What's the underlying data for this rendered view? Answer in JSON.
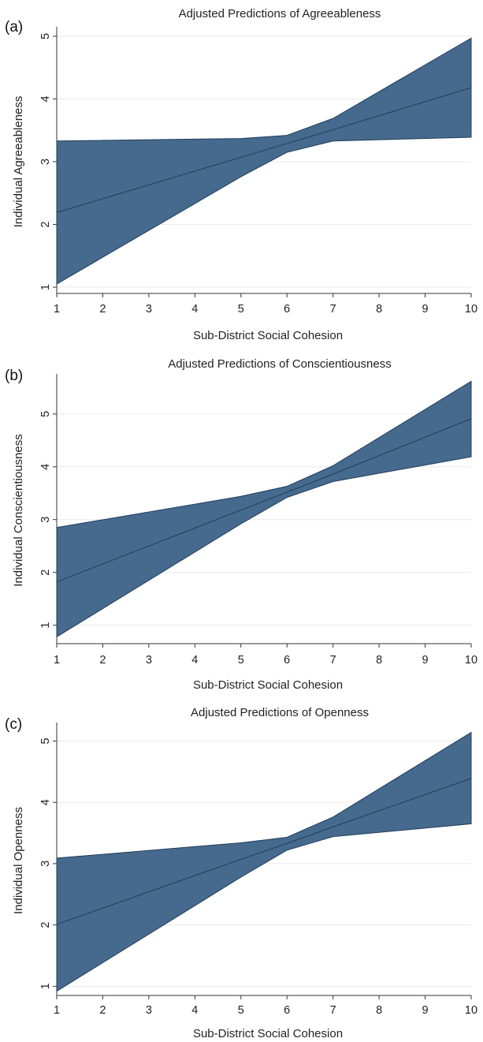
{
  "chart_data": [
    {
      "type": "area",
      "panel_label": "(a)",
      "title": "Adjusted Predictions of Agreeableness",
      "xlabel": "Sub-District Social Cohesion",
      "ylabel": "Individual Agreeableness",
      "xlim": [
        1,
        10
      ],
      "ylim": [
        0.9,
        5.1
      ],
      "x_ticks": [
        1,
        2,
        3,
        4,
        5,
        6,
        7,
        8,
        9,
        10
      ],
      "y_ticks": [
        1,
        2,
        3,
        4,
        5
      ],
      "grid": true,
      "x": [
        1,
        5,
        6,
        7,
        10
      ],
      "series": [
        {
          "role": "upper",
          "values": [
            3.33,
            3.37,
            3.42,
            3.69,
            4.97
          ]
        },
        {
          "role": "prediction",
          "values": [
            2.19,
            3.07,
            3.29,
            3.51,
            4.18
          ]
        },
        {
          "role": "lower",
          "values": [
            1.05,
            2.76,
            3.15,
            3.33,
            3.39
          ]
        }
      ]
    },
    {
      "type": "area",
      "panel_label": "(b)",
      "title": "Adjusted Predictions of Conscientiousness",
      "xlabel": "Sub-District Social Cohesion",
      "ylabel": "Individual Conscientiousness",
      "xlim": [
        1,
        10
      ],
      "ylim": [
        0.65,
        5.7
      ],
      "x_ticks": [
        1,
        2,
        3,
        4,
        5,
        6,
        7,
        8,
        9,
        10
      ],
      "y_ticks": [
        1,
        2,
        3,
        4,
        5
      ],
      "grid": true,
      "x": [
        1,
        5,
        6,
        7,
        10
      ],
      "series": [
        {
          "role": "upper",
          "values": [
            2.85,
            3.44,
            3.63,
            4.02,
            5.62
          ]
        },
        {
          "role": "prediction",
          "values": [
            1.82,
            3.18,
            3.52,
            3.86,
            4.91
          ]
        },
        {
          "role": "lower",
          "values": [
            0.78,
            2.92,
            3.42,
            3.72,
            4.19
          ]
        }
      ]
    },
    {
      "type": "area",
      "panel_label": "(c)",
      "title": "Adjusted Predictions of Openness",
      "xlabel": "Sub-District Social Cohesion",
      "ylabel": "Individual Openness",
      "xlim": [
        1,
        10
      ],
      "ylim": [
        0.85,
        5.25
      ],
      "x_ticks": [
        1,
        2,
        3,
        4,
        5,
        6,
        7,
        8,
        9,
        10
      ],
      "y_ticks": [
        1,
        2,
        3,
        4,
        5
      ],
      "grid": true,
      "x": [
        1,
        5,
        6,
        7,
        10
      ],
      "series": [
        {
          "role": "upper",
          "values": [
            3.09,
            3.34,
            3.43,
            3.76,
            5.14
          ]
        },
        {
          "role": "prediction",
          "values": [
            2.01,
            3.07,
            3.33,
            3.6,
            4.39
          ]
        },
        {
          "role": "lower",
          "values": [
            0.92,
            2.78,
            3.22,
            3.44,
            3.65
          ]
        }
      ]
    }
  ]
}
